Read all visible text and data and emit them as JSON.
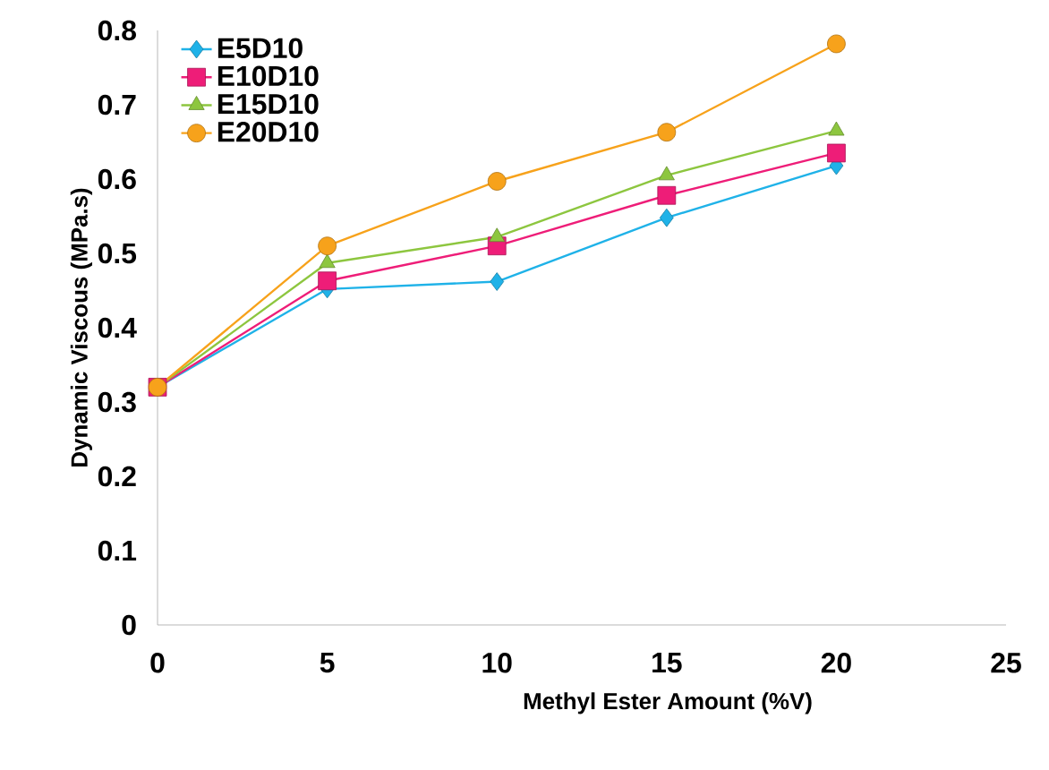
{
  "chart_data": {
    "type": "line",
    "xlabel": "Methyl Ester Amount (%V)",
    "ylabel": "Dynamic Viscous (MPa.s)",
    "x": [
      0,
      5,
      10,
      15,
      20
    ],
    "series": [
      {
        "name": "E5D10",
        "color": "#1fb2e8",
        "marker": "diamond",
        "values": [
          0.32,
          0.452,
          0.462,
          0.548,
          0.618
        ]
      },
      {
        "name": "E10D10",
        "color": "#ee1d78",
        "marker": "square",
        "values": [
          0.32,
          0.463,
          0.51,
          0.578,
          0.635
        ]
      },
      {
        "name": "E15D10",
        "color": "#8dc63f",
        "marker": "triangle",
        "values": [
          0.32,
          0.487,
          0.522,
          0.605,
          0.665
        ]
      },
      {
        "name": "E20D10",
        "color": "#f7a21b",
        "marker": "circle",
        "values": [
          0.32,
          0.51,
          0.597,
          0.663,
          0.782
        ]
      }
    ],
    "xlim": [
      0,
      25
    ],
    "xticks": [
      0,
      5,
      10,
      15,
      20,
      25
    ],
    "ylim": [
      0,
      0.8
    ],
    "yticks": [
      0,
      0.1,
      0.2,
      0.3,
      0.4,
      0.5,
      0.6,
      0.7,
      0.8
    ],
    "grid": false,
    "legend": "top left",
    "line_style": "solid"
  }
}
